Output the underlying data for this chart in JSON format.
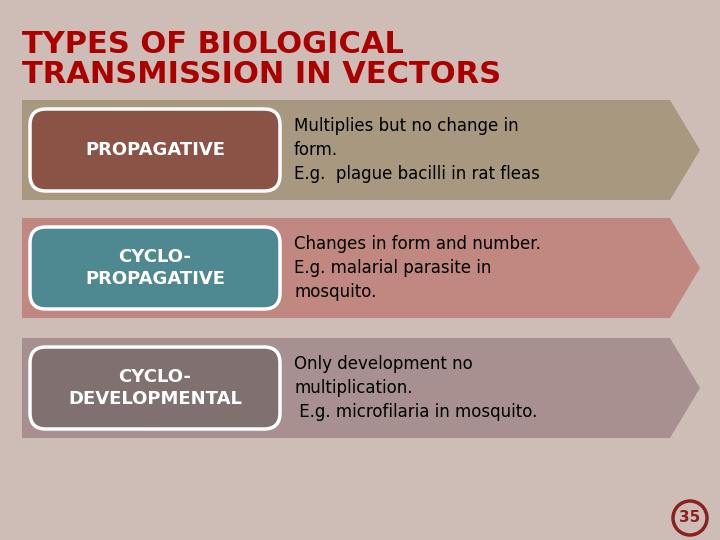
{
  "title_line1": "TYPES OF BIOLOGICAL",
  "title_line2": "TRANSMISSION IN VECTORS",
  "title_color": "#AA0000",
  "background_color": "#CEBDB7",
  "slide_number": "35",
  "slide_number_color": "#8B2020",
  "rows": [
    {
      "label": "PROPAGATIVE",
      "label_bg": "#8B5246",
      "arrow_color": "#A89880",
      "text": "Multiplies but no change in\nform.\nE.g.  plague bacilli in rat fleas"
    },
    {
      "label": "CYCLO-\nPROPAGATIVE",
      "label_bg": "#4E8890",
      "arrow_color": "#C08880",
      "text": "Changes in form and number.\nE.g. malarial parasite in\nmosquito."
    },
    {
      "label": "CYCLO-\nDEVELOPMENTAL",
      "label_bg": "#807070",
      "arrow_color": "#A89090",
      "text": "Only development no\nmultiplication.\n E.g. microfilaria in mosquito."
    }
  ]
}
